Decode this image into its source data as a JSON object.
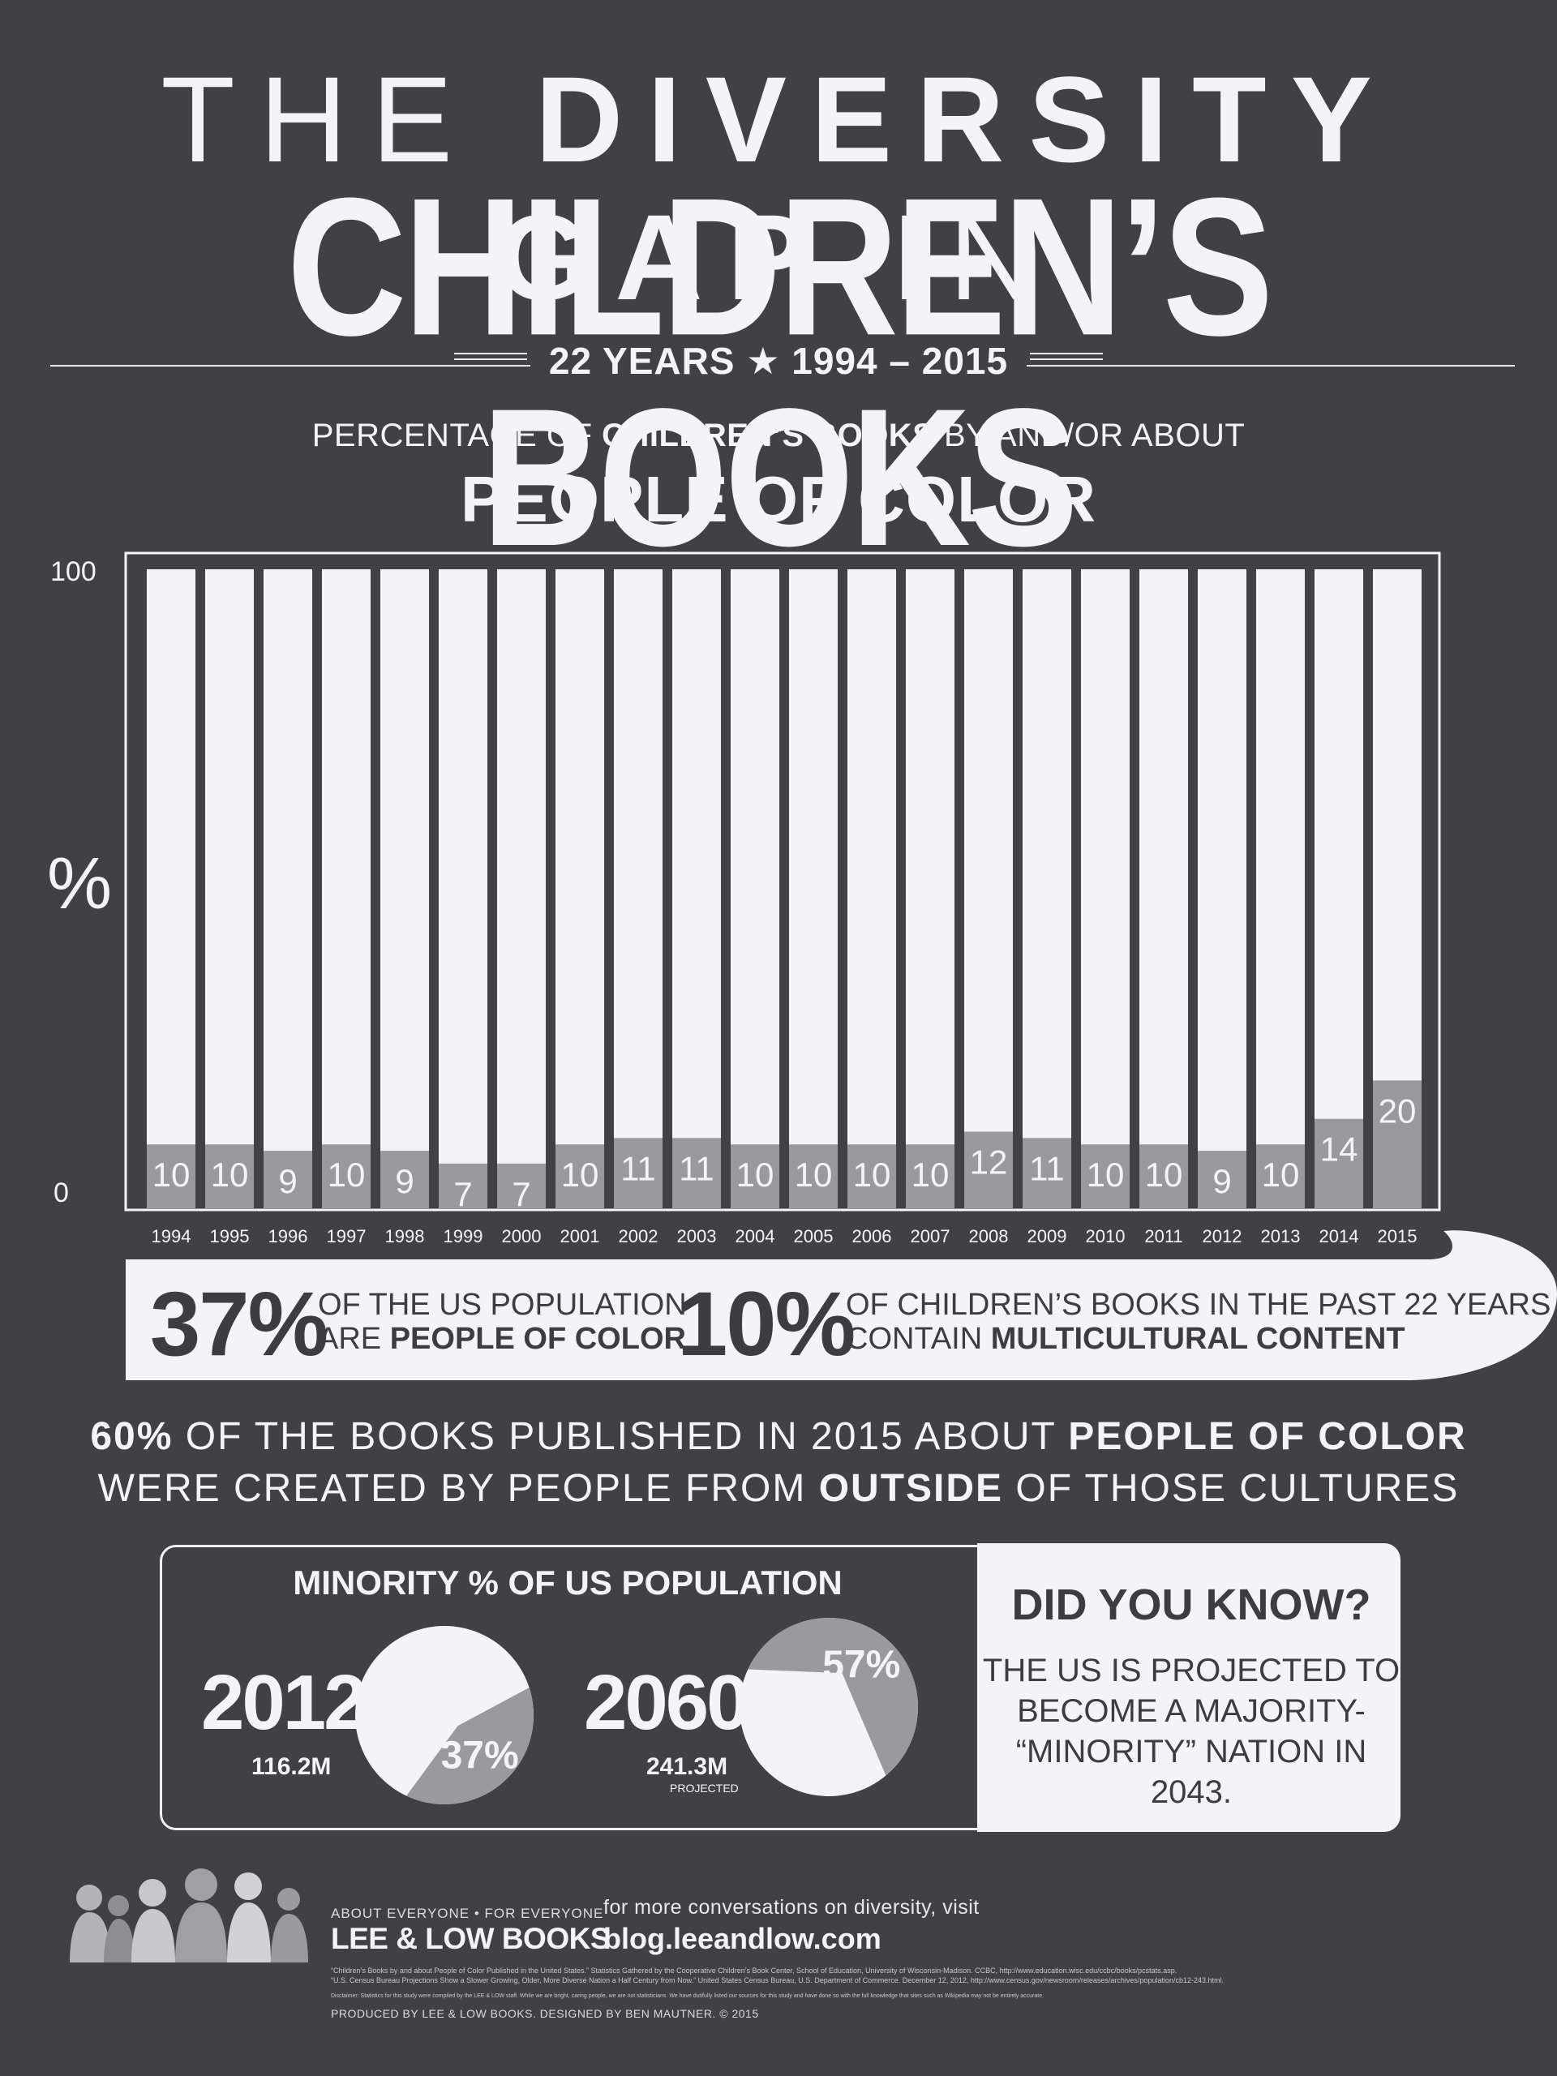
{
  "title": {
    "line1_prefix": "THE ",
    "line1_bold": "DIVERSITY GAP",
    "line1_suffix": " IN",
    "line2": "CHILDREN’S BOOKS",
    "years": "22 YEARS ★ 1994 – 2015"
  },
  "subtitle": {
    "prefix": "PERCENTAGE OF ",
    "bold": "CHILDREN’S BOOKS",
    "suffix": " BY AND/OR ABOUT",
    "headline": "PEOPLE OF COLOR"
  },
  "chart_data": {
    "type": "bar",
    "title": "PEOPLE OF COLOR",
    "ylabel": "%",
    "ylim": [
      0,
      100
    ],
    "yticks": [
      "0",
      "100"
    ],
    "categories": [
      "1994",
      "1995",
      "1996",
      "1997",
      "1998",
      "1999",
      "2000",
      "2001",
      "2002",
      "2003",
      "2004",
      "2005",
      "2006",
      "2007",
      "2008",
      "2009",
      "2010",
      "2011",
      "2012",
      "2013",
      "2014",
      "2015"
    ],
    "values": [
      10,
      10,
      9,
      10,
      9,
      7,
      7,
      10,
      11,
      11,
      10,
      10,
      10,
      10,
      12,
      11,
      10,
      10,
      9,
      10,
      14,
      20
    ],
    "data_labels": [
      "10",
      "10",
      "9",
      "10",
      "9",
      "7",
      "7",
      "10",
      "11",
      "11",
      "10",
      "10",
      "10",
      "10",
      "12",
      "11",
      "10",
      "10",
      "9",
      "10",
      "14",
      "20"
    ],
    "colors": {
      "filled": "#9a9a9c",
      "background": "#f4f4f6",
      "label": "#f4f4f6"
    }
  },
  "stats": {
    "stat1_value": "37%",
    "stat1_line1": "OF THE US POPULATION",
    "stat1_line2_prefix": "ARE ",
    "stat1_line2_bold": "PEOPLE OF COLOR",
    "stat2_value": "10%",
    "stat2_line1": "OF CHILDREN’S BOOKS IN THE PAST 22 YEARS",
    "stat2_line2_prefix": "CONTAIN ",
    "stat2_line2_bold": "MULTICULTURAL CONTENT"
  },
  "statement": {
    "line1_bold1": "60%",
    "line1_mid": " OF THE BOOKS PUBLISHED IN 2015 ABOUT ",
    "line1_bold2": "PEOPLE OF COLOR",
    "line2_prefix": "WERE CREATED BY PEOPLE FROM ",
    "line2_bold": "OUTSIDE",
    "line2_suffix": " OF THOSE CULTURES"
  },
  "minority": {
    "title": "MINORITY % OF US POPULATION",
    "pies": [
      {
        "year": "2012",
        "population": "116.2M",
        "percent": 37,
        "label": "37%",
        "note": ""
      },
      {
        "year": "2060",
        "population": "241.3M",
        "percent": 57,
        "label": "57%",
        "note": "PROJECTED"
      }
    ],
    "pie_colors": {
      "slice": "#9a9a9c",
      "rest": "#f4f4f6"
    }
  },
  "did_you_know": {
    "title": "DID YOU KNOW?",
    "line1": "THE US IS PROJECTED TO",
    "line2": "BECOME A MAJORITY-",
    "line3": "“MINORITY” NATION IN 2043."
  },
  "footer": {
    "tagline": "ABOUT EVERYONE • FOR EVERYONE",
    "publisher": "LEE & LOW BOOKS",
    "more_text": "for more conversations on diversity, visit",
    "blog_url": "blog.leeandlow.com",
    "source_1": "“Children’s Books by and about People of Color Published in the United States.” Statistics Gathered by the Cooperative Children’s Book Center, School of Education, University of Wisconsin-Madison. CCBC, http://www.education.wisc.edu/ccbc/books/pcstats.asp.",
    "source_2": "“U.S. Census Bureau Projections Show a Slower Growing, Older, More Diverse Nation a Half Century from Now.” United States Census Bureau, U.S. Department of Commerce. December 12, 2012, http://www.census.gov/newsroom/releases/archives/population/cb12-243.html.",
    "disclaimer": "Disclaimer: Statistics for this study were compiled by the LEE & LOW staff. While we are bright, caring people, we are not statisticians. We have dutifully listed our sources for this study and have done so with the full knowledge that sites such as Wikipedia may not be entirely accurate.",
    "credits": "PRODUCED BY LEE & LOW BOOKS. DESIGNED BY BEN MAUTNER. © 2015"
  }
}
